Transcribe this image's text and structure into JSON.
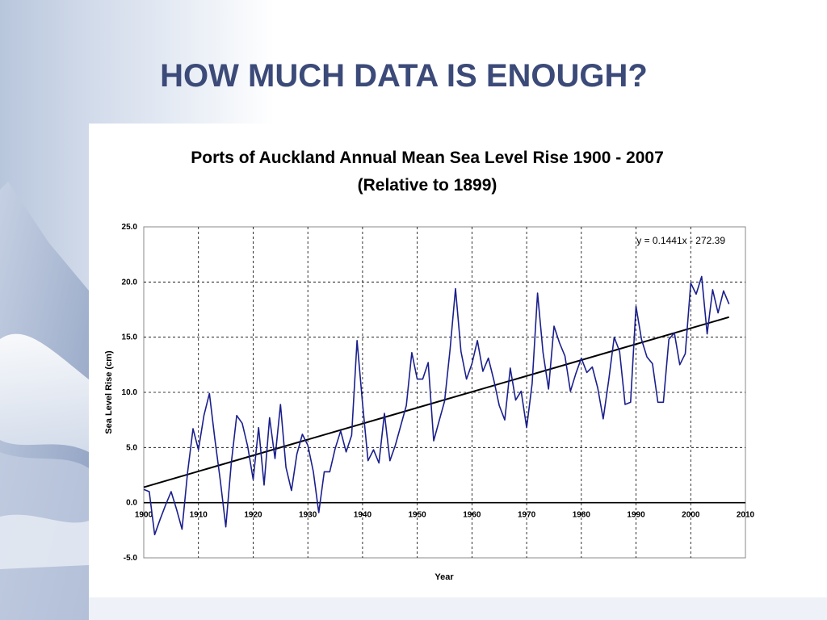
{
  "slide": {
    "title": "HOW MUCH DATA IS ENOUGH?"
  },
  "colors": {
    "title": "#3b4a78",
    "series": "#1a1f8c",
    "trend": "#000000",
    "grid": "#000000"
  },
  "chart_data": {
    "type": "line",
    "title": "Ports of Auckland Annual Mean Sea Level Rise 1900 - 2007",
    "subtitle": "(Relative to 1899)",
    "xlabel": "Year",
    "ylabel": "Sea Level Rise (cm)",
    "xlim": [
      1900,
      2010
    ],
    "ylim": [
      -5,
      25
    ],
    "x_ticks": [
      "1900",
      "1910",
      "1920",
      "1930",
      "1940",
      "1950",
      "1960",
      "1970",
      "1980",
      "1990",
      "2000",
      "2010"
    ],
    "y_ticks": [
      "25.0",
      "20.0",
      "15.0",
      "10.0",
      "5.0",
      "0.0",
      "-5.0"
    ],
    "grid": true,
    "legend": "none",
    "series": [
      {
        "x": [
          1900,
          1901,
          1902,
          1903,
          1904,
          1905,
          1906,
          1907,
          1908,
          1909,
          1910,
          1911,
          1912,
          1913,
          1914,
          1915,
          1916,
          1917,
          1918,
          1919,
          1920,
          1921,
          1922,
          1923,
          1924,
          1925,
          1926,
          1927,
          1928,
          1929,
          1930,
          1931,
          1932,
          1933,
          1934,
          1935,
          1936,
          1937,
          1938,
          1939,
          1940,
          1941,
          1942,
          1943,
          1944,
          1945,
          1946,
          1947,
          1948,
          1949,
          1950,
          1951,
          1952,
          1953,
          1954,
          1955,
          1956,
          1957,
          1958,
          1959,
          1960,
          1961,
          1962,
          1963,
          1964,
          1965,
          1966,
          1967,
          1968,
          1969,
          1970,
          1971,
          1972,
          1973,
          1974,
          1975,
          1976,
          1977,
          1978,
          1979,
          1980,
          1981,
          1982,
          1983,
          1984,
          1985,
          1986,
          1987,
          1988,
          1989,
          1990,
          1991,
          1992,
          1993,
          1994,
          1995,
          1996,
          1997,
          1998,
          1999,
          2000,
          2001,
          2002,
          2003,
          2004,
          2005,
          2006,
          2007
        ],
        "values": [
          1.2,
          1.0,
          -2.9,
          -1.5,
          -0.2,
          1.0,
          -0.6,
          -2.4,
          2.7,
          6.7,
          4.8,
          7.9,
          9.9,
          5.8,
          2.0,
          -2.2,
          3.6,
          7.9,
          7.2,
          5.1,
          2.1,
          6.8,
          1.6,
          7.7,
          4.0,
          8.9,
          3.2,
          1.1,
          4.4,
          6.2,
          5.2,
          2.8,
          -0.9,
          2.8,
          2.8,
          4.9,
          6.5,
          4.6,
          6.1,
          14.7,
          9.0,
          3.8,
          4.8,
          3.6,
          8.1,
          3.8,
          5.2,
          7.0,
          8.8,
          13.6,
          11.2,
          11.2,
          12.7,
          5.6,
          7.4,
          9.2,
          13.9,
          19.4,
          13.7,
          11.2,
          12.6,
          14.7,
          11.9,
          13.1,
          11.1,
          8.8,
          7.5,
          12.2,
          9.3,
          10.1,
          6.8,
          10.8,
          19.0,
          13.6,
          10.3,
          16.0,
          14.5,
          13.3,
          10.1,
          11.7,
          13.1,
          11.8,
          12.3,
          10.4,
          7.6,
          11.1,
          15.0,
          13.7,
          8.9,
          9.1,
          17.8,
          14.8,
          13.2,
          12.6,
          9.1,
          9.1,
          14.8,
          15.4,
          12.5,
          13.5,
          19.9,
          18.9,
          20.5,
          15.3,
          19.3,
          17.2,
          19.2,
          18.0
        ]
      }
    ],
    "trendline": {
      "equation": "y = 0.1441x - 272.39",
      "slope": 0.1441,
      "intercept": -272.39,
      "x_range": [
        1900,
        2007
      ]
    }
  }
}
